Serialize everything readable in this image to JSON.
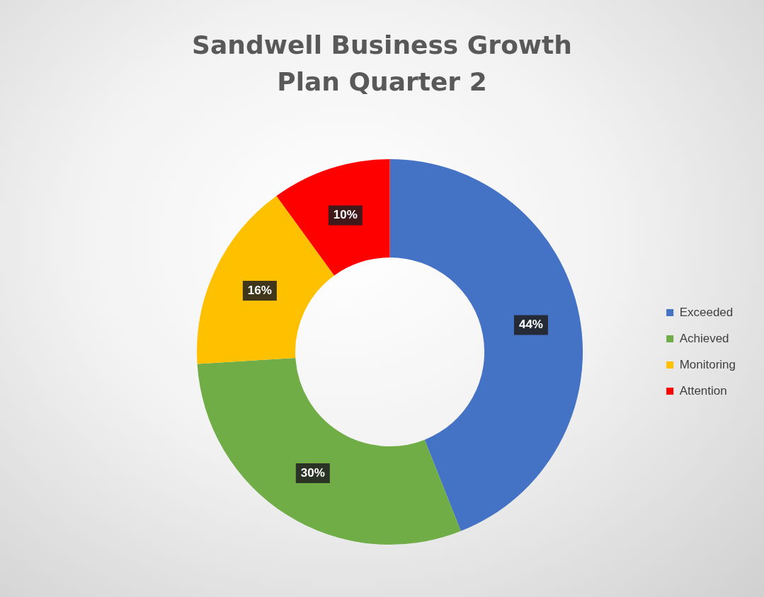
{
  "chart_data": {
    "type": "donut",
    "title": "Sandwell Business Growth Plan Quarter 2",
    "categories": [
      "Exceeded",
      "Achieved",
      "Monitoring",
      "Attention"
    ],
    "values": [
      44,
      30,
      16,
      10
    ],
    "value_labels": [
      "44%",
      "30%",
      "16%",
      "10%"
    ],
    "colors": [
      "#4472c4",
      "#70ad47",
      "#ffc000",
      "#ff0000"
    ],
    "legend": "right"
  }
}
